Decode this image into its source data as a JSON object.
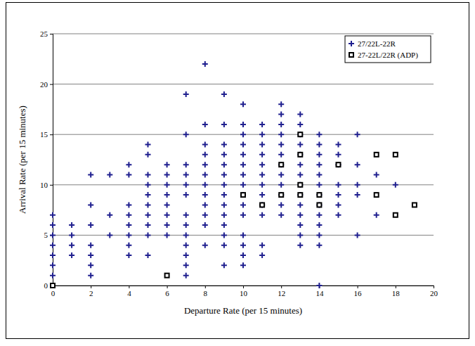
{
  "chart_data": {
    "type": "scatter",
    "x_label": "Departure Rate (per 15 minutes)",
    "y_label": "Arrival Rate (per 15 minutes)",
    "xlim": [
      0,
      20
    ],
    "xticks": [
      0,
      2,
      4,
      6,
      8,
      10,
      12,
      14,
      16,
      18,
      20
    ],
    "ylim": [
      0,
      25
    ],
    "yticks": [
      0,
      5,
      10,
      15,
      20,
      25
    ],
    "grid": "y",
    "legend": "upper right",
    "series": [
      {
        "name": "27/22L-22R",
        "color": "#1f1f8f",
        "marker": "plus",
        "x": [
          0,
          0,
          0,
          0,
          0,
          0,
          0,
          0,
          1,
          1,
          1,
          1,
          2,
          2,
          2,
          2,
          2,
          2,
          2,
          3,
          3,
          3,
          4,
          4,
          4,
          4,
          4,
          4,
          4,
          4,
          5,
          5,
          5,
          5,
          5,
          5,
          5,
          5,
          5,
          5,
          6,
          6,
          6,
          6,
          6,
          6,
          6,
          6,
          7,
          7,
          7,
          7,
          7,
          7,
          7,
          7,
          7,
          7,
          7,
          7,
          7,
          8,
          8,
          8,
          8,
          8,
          8,
          8,
          8,
          8,
          8,
          8,
          8,
          9,
          9,
          9,
          9,
          9,
          9,
          9,
          9,
          9,
          9,
          9,
          9,
          9,
          9,
          10,
          10,
          10,
          10,
          10,
          10,
          10,
          10,
          10,
          10,
          10,
          10,
          10,
          10,
          10,
          11,
          11,
          11,
          11,
          11,
          11,
          11,
          11,
          11,
          11,
          11,
          11,
          12,
          12,
          12,
          12,
          12,
          12,
          12,
          12,
          12,
          12,
          12,
          12,
          13,
          13,
          13,
          13,
          13,
          13,
          13,
          13,
          13,
          13,
          13,
          13,
          13,
          13,
          14,
          14,
          14,
          14,
          14,
          14,
          14,
          14,
          14,
          14,
          14,
          14,
          14,
          15,
          15,
          15,
          15,
          15,
          15,
          15,
          16,
          16,
          16,
          16,
          16,
          17,
          17,
          18
        ],
        "values": [
          0,
          1,
          2,
          3,
          4,
          5,
          6,
          7,
          3,
          4,
          5,
          6,
          1,
          2,
          3,
          4,
          6,
          8,
          11,
          5,
          7,
          11,
          3,
          4,
          5,
          6,
          7,
          8,
          11,
          12,
          3,
          5,
          6,
          7,
          8,
          9,
          10,
          11,
          13,
          14,
          5,
          6,
          7,
          8,
          9,
          10,
          11,
          12,
          1,
          2,
          3,
          4,
          5,
          6,
          7,
          9,
          10,
          11,
          12,
          15,
          19,
          4,
          6,
          7,
          8,
          9,
          10,
          11,
          12,
          13,
          14,
          16,
          22,
          2,
          4,
          5,
          6,
          7,
          8,
          9,
          10,
          11,
          12,
          13,
          14,
          16,
          19,
          2,
          3,
          4,
          5,
          7,
          8,
          9,
          10,
          11,
          12,
          13,
          14,
          15,
          16,
          18,
          3,
          4,
          7,
          8,
          9,
          10,
          11,
          12,
          13,
          14,
          15,
          16,
          7,
          8,
          9,
          10,
          11,
          12,
          13,
          14,
          15,
          16,
          17,
          18,
          4,
          5,
          6,
          7,
          8,
          9,
          10,
          11,
          12,
          13,
          14,
          15,
          16,
          17,
          0,
          4,
          5,
          6,
          7,
          8,
          9,
          10,
          11,
          12,
          13,
          14,
          15,
          7,
          8,
          9,
          10,
          12,
          13,
          14,
          5,
          9,
          10,
          12,
          15,
          7,
          11,
          10
        ]
      },
      {
        "name": "27-22L/22R (ADP)",
        "color": "#000000",
        "marker": "square",
        "x": [
          0,
          6,
          10,
          11,
          12,
          12,
          13,
          13,
          13,
          13,
          14,
          14,
          15,
          17,
          17,
          18,
          18,
          19
        ],
        "values": [
          0,
          1,
          9,
          8,
          12,
          9,
          15,
          13,
          10,
          9,
          9,
          8,
          12,
          13,
          9,
          13,
          7,
          8
        ]
      }
    ]
  }
}
